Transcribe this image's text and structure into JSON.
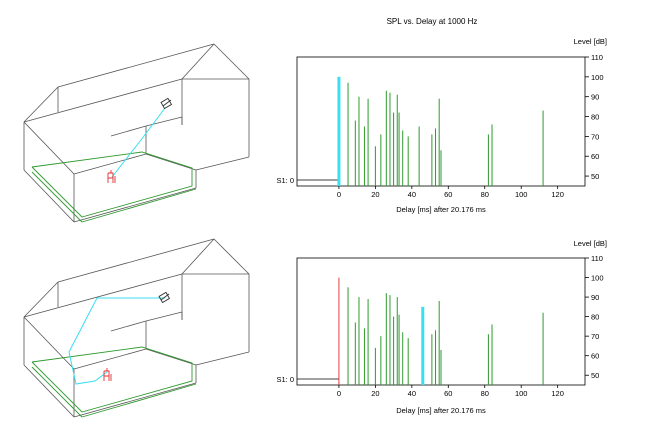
{
  "title": "SPL vs. Delay at  1000 Hz",
  "colors": {
    "wire": "#555555",
    "floor": "#2e9a2e",
    "ray": "#37e0f0",
    "source": "#e03030",
    "bar": "#2e9a2e",
    "highlight": "#37e0f0",
    "direct": "#e04040"
  },
  "chart_data": [
    {
      "type": "bar",
      "title": "SPL vs. Delay at  1000 Hz",
      "xlabel": "Delay [ms] after   20.176 ms",
      "ylabel": "Level [dB]",
      "ylim": [
        45,
        110
      ],
      "xlim": [
        -23,
        135
      ],
      "xticks": [
        0,
        20,
        40,
        60,
        80,
        100,
        120
      ],
      "yticks": [
        50,
        60,
        70,
        80,
        90,
        100,
        110
      ],
      "baseline_label": "S1: 0",
      "highlight": {
        "x": 0,
        "value": 100,
        "kind": "ray"
      },
      "reflections": [
        {
          "x": 5,
          "v": 97
        },
        {
          "x": 9,
          "v": 78
        },
        {
          "x": 11,
          "v": 90
        },
        {
          "x": 14,
          "v": 75
        },
        {
          "x": 16,
          "v": 89
        },
        {
          "x": 20,
          "v": 65
        },
        {
          "x": 23,
          "v": 71
        },
        {
          "x": 26,
          "v": 93
        },
        {
          "x": 28,
          "v": 92
        },
        {
          "x": 30,
          "v": 82
        },
        {
          "x": 32,
          "v": 91
        },
        {
          "x": 33,
          "v": 82
        },
        {
          "x": 35,
          "v": 73
        },
        {
          "x": 38,
          "v": 70
        },
        {
          "x": 44,
          "v": 75
        },
        {
          "x": 51,
          "v": 71
        },
        {
          "x": 53,
          "v": 74
        },
        {
          "x": 55,
          "v": 89
        },
        {
          "x": 56,
          "v": 63
        },
        {
          "x": 82,
          "v": 71
        },
        {
          "x": 84,
          "v": 76
        },
        {
          "x": 112,
          "v": 83
        }
      ]
    },
    {
      "type": "bar",
      "title": "",
      "xlabel": "Delay [ms] after   20.176 ms",
      "ylabel": "Level [dB]",
      "ylim": [
        45,
        110
      ],
      "xlim": [
        -23,
        135
      ],
      "xticks": [
        0,
        20,
        40,
        60,
        80,
        100,
        120
      ],
      "yticks": [
        50,
        60,
        70,
        80,
        90,
        100,
        110
      ],
      "baseline_label": "S1: 0",
      "direct": {
        "x": 0,
        "value": 100
      },
      "highlight": {
        "x": 46,
        "value": 85,
        "kind": "ray"
      },
      "reflections": [
        {
          "x": 5,
          "v": 95
        },
        {
          "x": 9,
          "v": 77
        },
        {
          "x": 11,
          "v": 90
        },
        {
          "x": 14,
          "v": 74
        },
        {
          "x": 16,
          "v": 89
        },
        {
          "x": 20,
          "v": 64
        },
        {
          "x": 23,
          "v": 70
        },
        {
          "x": 26,
          "v": 92
        },
        {
          "x": 28,
          "v": 91
        },
        {
          "x": 30,
          "v": 80
        },
        {
          "x": 32,
          "v": 90
        },
        {
          "x": 33,
          "v": 81
        },
        {
          "x": 35,
          "v": 72
        },
        {
          "x": 38,
          "v": 69
        },
        {
          "x": 51,
          "v": 71
        },
        {
          "x": 53,
          "v": 73
        },
        {
          "x": 55,
          "v": 88
        },
        {
          "x": 56,
          "v": 63
        },
        {
          "x": 82,
          "v": 71
        },
        {
          "x": 84,
          "v": 76
        },
        {
          "x": 112,
          "v": 82
        }
      ]
    }
  ]
}
